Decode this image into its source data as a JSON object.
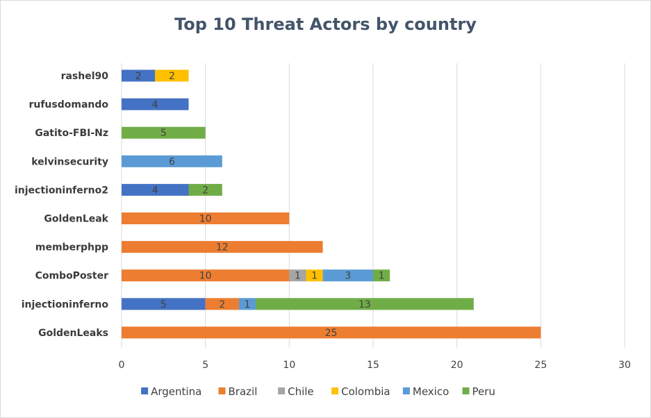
{
  "chart_data": {
    "type": "bar",
    "orientation": "horizontal",
    "stacked": true,
    "title": "Top 10 Threat Actors by country",
    "categories": [
      "rashel90",
      "rufusdomando",
      "Gatito-FBI-Nz",
      "kelvinsecurity",
      "injectioninferno2",
      "GoldenLeak",
      "memberphpp",
      "ComboPoster",
      "injectioninferno",
      "GoldenLeaks"
    ],
    "series": [
      {
        "name": "Argentina",
        "color": "#4472c4",
        "values": [
          2,
          4,
          0,
          0,
          4,
          0,
          0,
          0,
          5,
          0
        ]
      },
      {
        "name": "Brazil",
        "color": "#ed7d31",
        "values": [
          0,
          0,
          0,
          0,
          0,
          10,
          12,
          10,
          2,
          25
        ]
      },
      {
        "name": "Chile",
        "color": "#a5a5a5",
        "values": [
          0,
          0,
          0,
          0,
          0,
          0,
          0,
          1,
          0,
          0
        ]
      },
      {
        "name": "Colombia",
        "color": "#ffc000",
        "values": [
          2,
          0,
          0,
          0,
          0,
          0,
          0,
          1,
          0,
          0
        ]
      },
      {
        "name": "Mexico",
        "color": "#5b9bd5",
        "values": [
          0,
          0,
          0,
          6,
          0,
          0,
          0,
          3,
          1,
          0
        ]
      },
      {
        "name": "Peru",
        "color": "#70ad47",
        "values": [
          0,
          0,
          5,
          0,
          2,
          0,
          0,
          1,
          13,
          0
        ]
      }
    ],
    "xlim": [
      0,
      30
    ],
    "xticks": [
      "0",
      "5",
      "10",
      "15",
      "20",
      "25",
      "30"
    ],
    "grid": true,
    "data_labels": true,
    "legend_position": "bottom"
  }
}
